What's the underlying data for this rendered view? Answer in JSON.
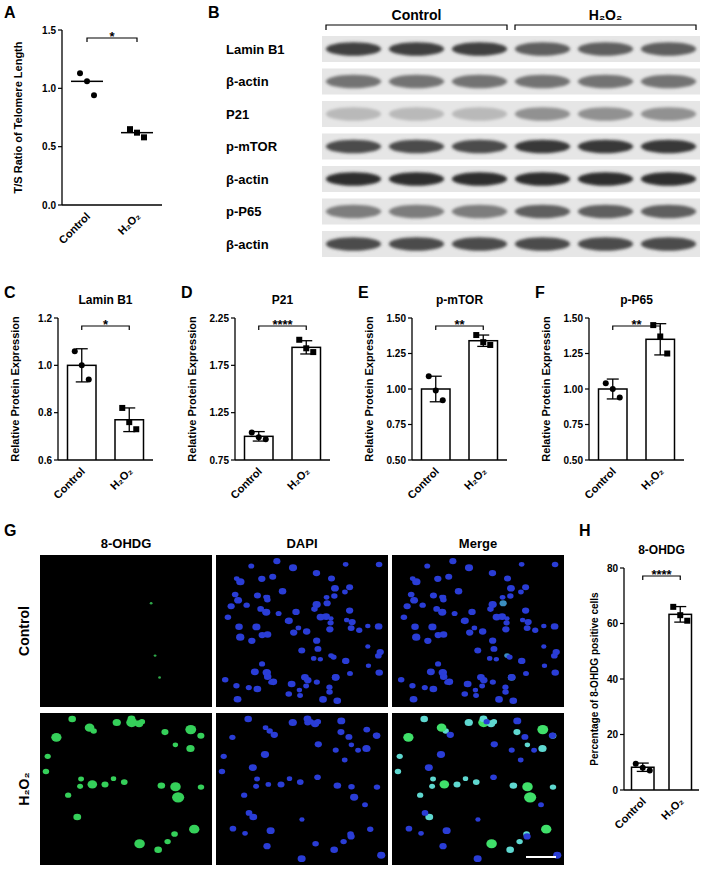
{
  "chart_data": [
    {
      "type": "dot",
      "panel": "A",
      "y_label": "T/S Ratio of Telomere Length",
      "categories": [
        "Control",
        "H₂O₂"
      ],
      "values": [
        1.06,
        0.62
      ],
      "points": [
        [
          1.13,
          1.06,
          0.94
        ],
        [
          0.65,
          0.62,
          0.58
        ]
      ],
      "ylim": [
        0,
        1.5
      ],
      "yticks": [
        {
          "value": 0,
          "label": "0.0"
        },
        0.5,
        {
          "value": 1,
          "label": "1.0"
        },
        1.5
      ],
      "significance": "*",
      "color": "#000000"
    },
    {
      "type": "bar",
      "panel": "C",
      "title": "Lamin B1",
      "y_label": "Relative Protein Expression",
      "categories": [
        "Control",
        "H₂O₂"
      ],
      "values": [
        1.0,
        0.77
      ],
      "errors": [
        0.07,
        0.05
      ],
      "points": [
        [
          1.06,
          1.0,
          0.94
        ],
        [
          0.82,
          0.76,
          0.73
        ]
      ],
      "ylim": [
        0.6,
        1.2
      ],
      "yticks": [
        0.6,
        0.8,
        {
          "value": 1,
          "label": "1.0"
        },
        1.2
      ],
      "significance": "*",
      "color": "#000000"
    },
    {
      "type": "bar",
      "panel": "D",
      "title": "P21",
      "y_label": "Relative Protein Expression",
      "categories": [
        "Control",
        "H₂O₂"
      ],
      "values": [
        1.0,
        1.94
      ],
      "errors": [
        0.05,
        0.07
      ],
      "points": [
        [
          1.04,
          0.99,
          0.97
        ],
        [
          2.02,
          1.93,
          1.89
        ]
      ],
      "ylim": [
        0.75,
        2.25
      ],
      "yticks": [
        0.75,
        1.25,
        1.75,
        2.25
      ],
      "significance": "****",
      "color": "#000000"
    },
    {
      "type": "bar",
      "panel": "E",
      "title": "p-mTOR",
      "y_label": "Relative Protein Expression",
      "categories": [
        "Control",
        "H₂O₂"
      ],
      "values": [
        1.0,
        1.34
      ],
      "errors": [
        0.09,
        0.04
      ],
      "points": [
        [
          1.09,
          0.99,
          0.92
        ],
        [
          1.38,
          1.33,
          1.31
        ]
      ],
      "ylim": [
        0.5,
        1.5
      ],
      "yticks": [
        {
          "value": 0.5,
          "label": "0.50"
        },
        0.75,
        {
          "value": 1,
          "label": "1.00"
        },
        1.25,
        {
          "value": 1.5,
          "label": "1.50"
        }
      ],
      "significance": "**",
      "color": "#000000"
    },
    {
      "type": "bar",
      "panel": "F",
      "title": "p-P65",
      "y_label": "Relative Protein Expression",
      "categories": [
        "Control",
        "H₂O₂"
      ],
      "values": [
        1.0,
        1.35
      ],
      "errors": [
        0.07,
        0.11
      ],
      "points": [
        [
          1.04,
          1.0,
          0.94
        ],
        [
          1.45,
          1.37,
          1.25
        ]
      ],
      "ylim": [
        0.5,
        1.5
      ],
      "yticks": [
        {
          "value": 0.5,
          "label": "0.50"
        },
        0.75,
        {
          "value": 1,
          "label": "1.00"
        },
        1.25,
        {
          "value": 1.5,
          "label": "1.50"
        }
      ],
      "significance": "**",
      "color": "#000000"
    },
    {
      "type": "bar",
      "panel": "H",
      "title": "8-OHDG",
      "y_label": "Percentage of 8-OHDG positive cells",
      "categories": [
        "Control",
        "H₂O₂"
      ],
      "values": [
        8.2,
        63.3
      ],
      "errors": [
        1.5,
        2.8
      ],
      "points": [
        [
          9.5,
          8,
          7
        ],
        [
          66,
          63,
          61
        ]
      ],
      "ylim": [
        0,
        80
      ],
      "yticks": [
        0,
        20,
        40,
        60,
        80
      ],
      "significance": "****",
      "color": "#000000"
    }
  ],
  "blot": {
    "panel": "B",
    "groups": [
      "Control",
      "H₂O₂"
    ],
    "rows": [
      "Lamin B1",
      "β-actin",
      "P21",
      "p-mTOR",
      "β-actin",
      "p-P65",
      "β-actin"
    ]
  },
  "images": {
    "panel": "G",
    "columns": [
      "8-OHDG",
      "DAPI",
      "Merge"
    ],
    "rows": [
      "Control",
      "H₂O₂"
    ]
  }
}
